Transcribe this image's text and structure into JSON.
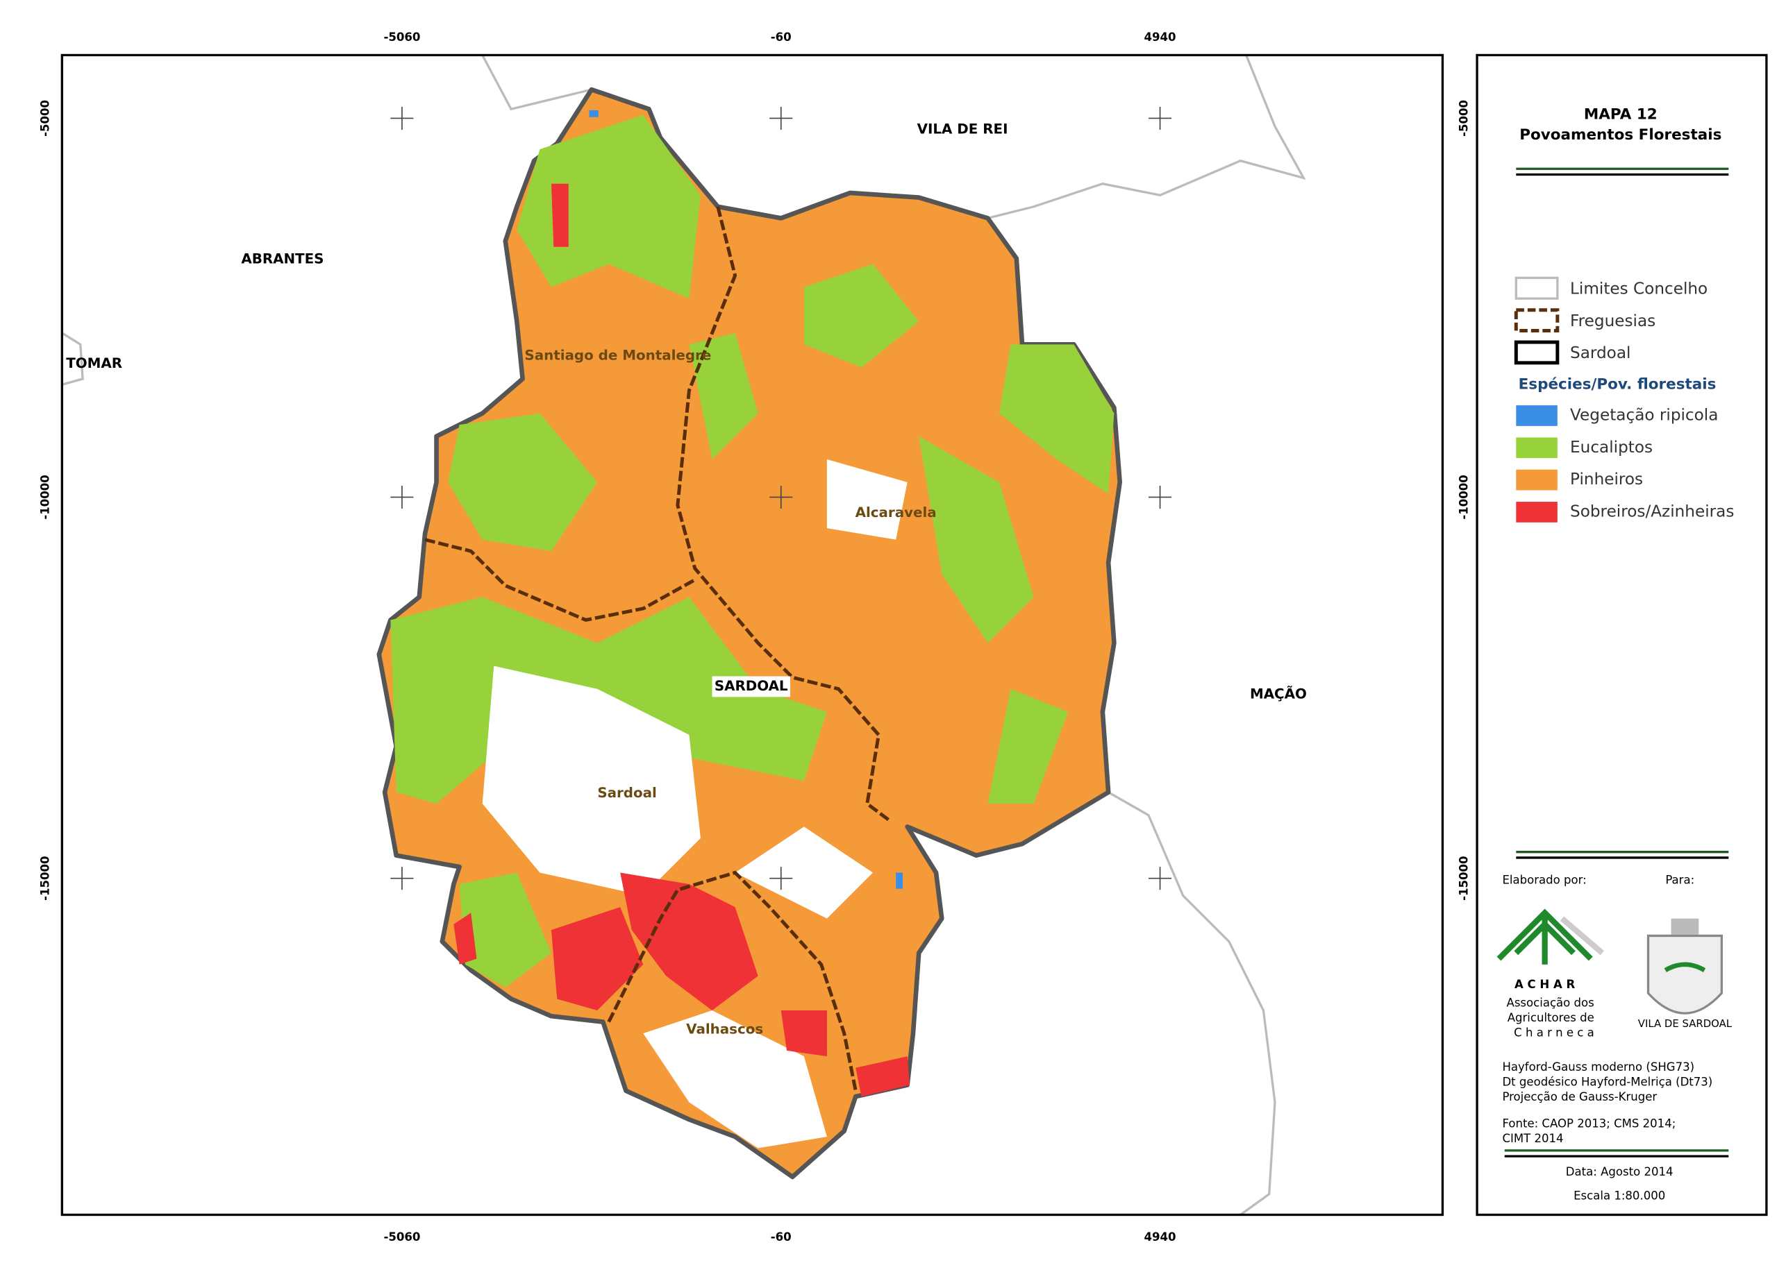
{
  "map": {
    "title": "MAPA 12",
    "subtitle": "Povoamentos Florestais",
    "top_ticks": [
      "-5060",
      "-60",
      "4940"
    ],
    "bottom_ticks": [
      "-5060",
      "-60",
      "4940"
    ],
    "left_ticks": [
      "-5000",
      "-10000",
      "-15000"
    ],
    "right_ticks": [
      "-5000",
      "-10000",
      "-15000"
    ],
    "places": {
      "vila_de_rei": "VILA DE REI",
      "abrantes": "ABRANTES",
      "tomar": "TOMAR",
      "macao": "MAÇÃO",
      "sardoal_caps": "SARDOAL",
      "santiago": "Santiago de Montalegre",
      "alcaravela": "Alcaravela",
      "sardoal": "Sardoal",
      "valhascos": "Valhascos"
    },
    "legend": {
      "boundaries": [
        "Limites Concelho",
        "Freguesias",
        "Sardoal"
      ],
      "species_title": "Espécies/Pov. florestais",
      "species": [
        {
          "name": "Vegetação ripicola",
          "color": "#3a8ee6"
        },
        {
          "name": "Eucaliptos",
          "color": "#98d23a"
        },
        {
          "name": "Pinheiros",
          "color": "#f59a38"
        },
        {
          "name": "Sobreiros/Azinheiras",
          "color": "#ee3236"
        }
      ]
    },
    "credits": {
      "made_by": "Elaborado por:",
      "for": "Para:",
      "achar": "A C H A R",
      "assoc": [
        "Associação dos",
        "Agricultores de",
        "C h a r n e c a"
      ],
      "crest": "VILA DE SARDOAL",
      "projection": [
        "Hayford-Gauss moderno (SHG73)",
        "Dt geodésico Hayford-Melriça (Dt73)",
        "Projecção de Gauss-Kruger"
      ],
      "source": [
        "Fonte: CAOP 2013; CMS 2014;",
        "CIMT 2014"
      ],
      "date": "Data: Agosto 2014",
      "scale": "Escala 1:80.000"
    }
  }
}
